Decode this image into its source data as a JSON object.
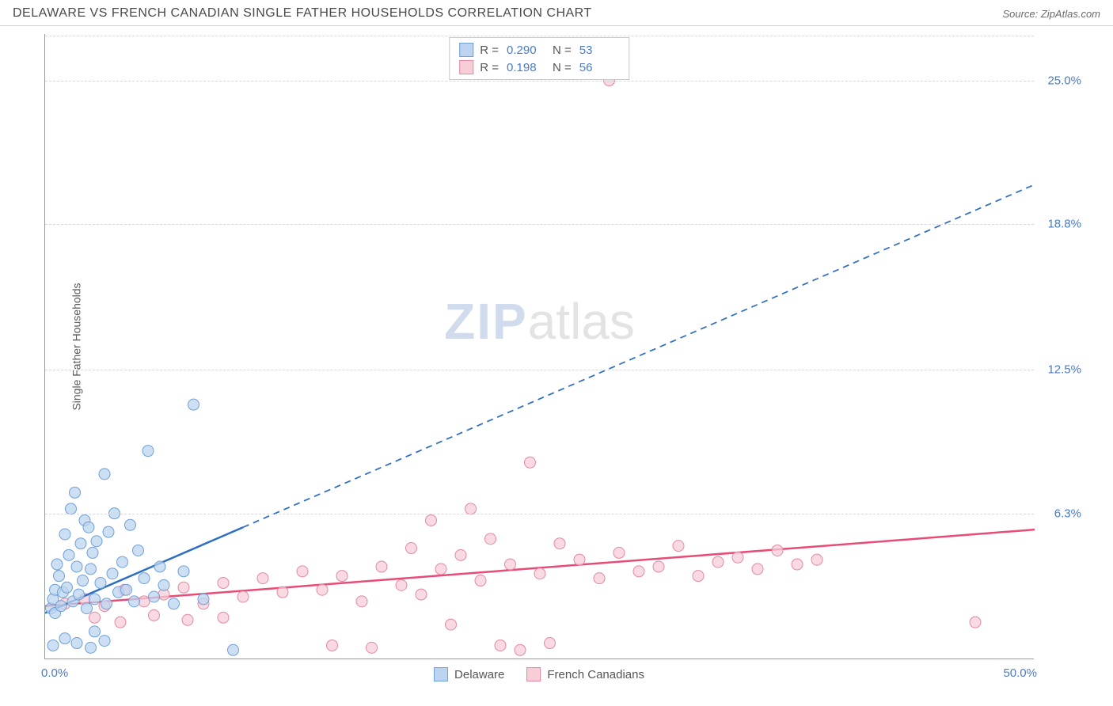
{
  "header": {
    "title": "DELAWARE VS FRENCH CANADIAN SINGLE FATHER HOUSEHOLDS CORRELATION CHART",
    "source": "Source: ZipAtlas.com"
  },
  "chart": {
    "type": "scatter",
    "ylabel": "Single Father Households",
    "xlim": [
      0,
      50
    ],
    "ylim": [
      0,
      27
    ],
    "xtick_labels": [
      "0.0%",
      "50.0%"
    ],
    "ytick_values": [
      6.3,
      12.5,
      18.8,
      25.0
    ],
    "ytick_labels": [
      "6.3%",
      "12.5%",
      "18.8%",
      "25.0%"
    ],
    "background_color": "#ffffff",
    "grid_color": "#d8d8d8",
    "series": [
      {
        "name": "Delaware",
        "color_fill": "#bcd4ef",
        "color_stroke": "#6fa0d8",
        "marker_size": 7,
        "line_color": "#2f6fc1",
        "line_width": 2.5,
        "dash_after_x": 10,
        "trend": {
          "x1": 0,
          "y1": 2.0,
          "x2": 50,
          "y2": 20.5
        },
        "r_value": "0.290",
        "n_value": "53",
        "points": [
          [
            0.3,
            2.2
          ],
          [
            0.4,
            2.6
          ],
          [
            0.5,
            3.0
          ],
          [
            0.5,
            2.0
          ],
          [
            0.6,
            4.1
          ],
          [
            0.7,
            3.6
          ],
          [
            0.8,
            2.3
          ],
          [
            0.9,
            2.9
          ],
          [
            1.0,
            5.4
          ],
          [
            1.1,
            3.1
          ],
          [
            1.2,
            4.5
          ],
          [
            1.3,
            6.5
          ],
          [
            1.4,
            2.5
          ],
          [
            1.5,
            7.2
          ],
          [
            1.6,
            4.0
          ],
          [
            1.7,
            2.8
          ],
          [
            1.8,
            5.0
          ],
          [
            1.9,
            3.4
          ],
          [
            2.0,
            6.0
          ],
          [
            2.1,
            2.2
          ],
          [
            2.2,
            5.7
          ],
          [
            2.3,
            3.9
          ],
          [
            2.4,
            4.6
          ],
          [
            2.5,
            2.6
          ],
          [
            2.6,
            5.1
          ],
          [
            2.8,
            3.3
          ],
          [
            3.0,
            8.0
          ],
          [
            3.1,
            2.4
          ],
          [
            3.2,
            5.5
          ],
          [
            3.4,
            3.7
          ],
          [
            3.5,
            6.3
          ],
          [
            3.7,
            2.9
          ],
          [
            3.9,
            4.2
          ],
          [
            4.1,
            3.0
          ],
          [
            4.3,
            5.8
          ],
          [
            4.5,
            2.5
          ],
          [
            4.7,
            4.7
          ],
          [
            5.0,
            3.5
          ],
          [
            5.2,
            9.0
          ],
          [
            5.5,
            2.7
          ],
          [
            5.8,
            4.0
          ],
          [
            6.0,
            3.2
          ],
          [
            6.5,
            2.4
          ],
          [
            7.0,
            3.8
          ],
          [
            7.5,
            11.0
          ],
          [
            8.0,
            2.6
          ],
          [
            0.4,
            0.6
          ],
          [
            1.0,
            0.9
          ],
          [
            1.6,
            0.7
          ],
          [
            2.3,
            0.5
          ],
          [
            3.0,
            0.8
          ],
          [
            9.5,
            0.4
          ],
          [
            2.5,
            1.2
          ]
        ]
      },
      {
        "name": "French Canadians",
        "color_fill": "#f7cdd8",
        "color_stroke": "#e389a3",
        "marker_size": 7,
        "line_color": "#e94b77",
        "line_width": 2.5,
        "dash_after_x": 50,
        "trend": {
          "x1": 0,
          "y1": 2.3,
          "x2": 50,
          "y2": 5.6
        },
        "r_value": "0.198",
        "n_value": "56",
        "points": [
          [
            1.0,
            2.4
          ],
          [
            2.0,
            2.6
          ],
          [
            3.0,
            2.3
          ],
          [
            4.0,
            3.0
          ],
          [
            5.0,
            2.5
          ],
          [
            6.0,
            2.8
          ],
          [
            7.0,
            3.1
          ],
          [
            8.0,
            2.4
          ],
          [
            9.0,
            3.3
          ],
          [
            10.0,
            2.7
          ],
          [
            11.0,
            3.5
          ],
          [
            12.0,
            2.9
          ],
          [
            13.0,
            3.8
          ],
          [
            14.0,
            3.0
          ],
          [
            14.5,
            0.6
          ],
          [
            15.0,
            3.6
          ],
          [
            16.0,
            2.5
          ],
          [
            16.5,
            0.5
          ],
          [
            17.0,
            4.0
          ],
          [
            18.0,
            3.2
          ],
          [
            18.5,
            4.8
          ],
          [
            19.0,
            2.8
          ],
          [
            19.5,
            6.0
          ],
          [
            20.0,
            3.9
          ],
          [
            20.5,
            1.5
          ],
          [
            21.0,
            4.5
          ],
          [
            21.5,
            6.5
          ],
          [
            22.0,
            3.4
          ],
          [
            22.5,
            5.2
          ],
          [
            23.0,
            0.6
          ],
          [
            23.5,
            4.1
          ],
          [
            24.0,
            0.4
          ],
          [
            24.5,
            8.5
          ],
          [
            25.0,
            3.7
          ],
          [
            25.5,
            0.7
          ],
          [
            26.0,
            5.0
          ],
          [
            27.0,
            4.3
          ],
          [
            28.0,
            3.5
          ],
          [
            28.5,
            25.0
          ],
          [
            29.0,
            4.6
          ],
          [
            30.0,
            3.8
          ],
          [
            31.0,
            4.0
          ],
          [
            32.0,
            4.9
          ],
          [
            33.0,
            3.6
          ],
          [
            34.0,
            4.2
          ],
          [
            35.0,
            4.4
          ],
          [
            36.0,
            3.9
          ],
          [
            37.0,
            4.7
          ],
          [
            38.0,
            4.1
          ],
          [
            39.0,
            4.3
          ],
          [
            47.0,
            1.6
          ],
          [
            2.5,
            1.8
          ],
          [
            3.8,
            1.6
          ],
          [
            5.5,
            1.9
          ],
          [
            7.2,
            1.7
          ],
          [
            9.0,
            1.8
          ]
        ]
      }
    ],
    "legend_top": {
      "r_label": "R =",
      "n_label": "N ="
    },
    "legend_bottom": [
      {
        "label": "Delaware",
        "fill": "#bcd4ef",
        "stroke": "#6fa0d8"
      },
      {
        "label": "French Canadians",
        "fill": "#f7cdd8",
        "stroke": "#e389a3"
      }
    ],
    "watermark": {
      "zip": "ZIP",
      "atlas": "atlas"
    }
  }
}
